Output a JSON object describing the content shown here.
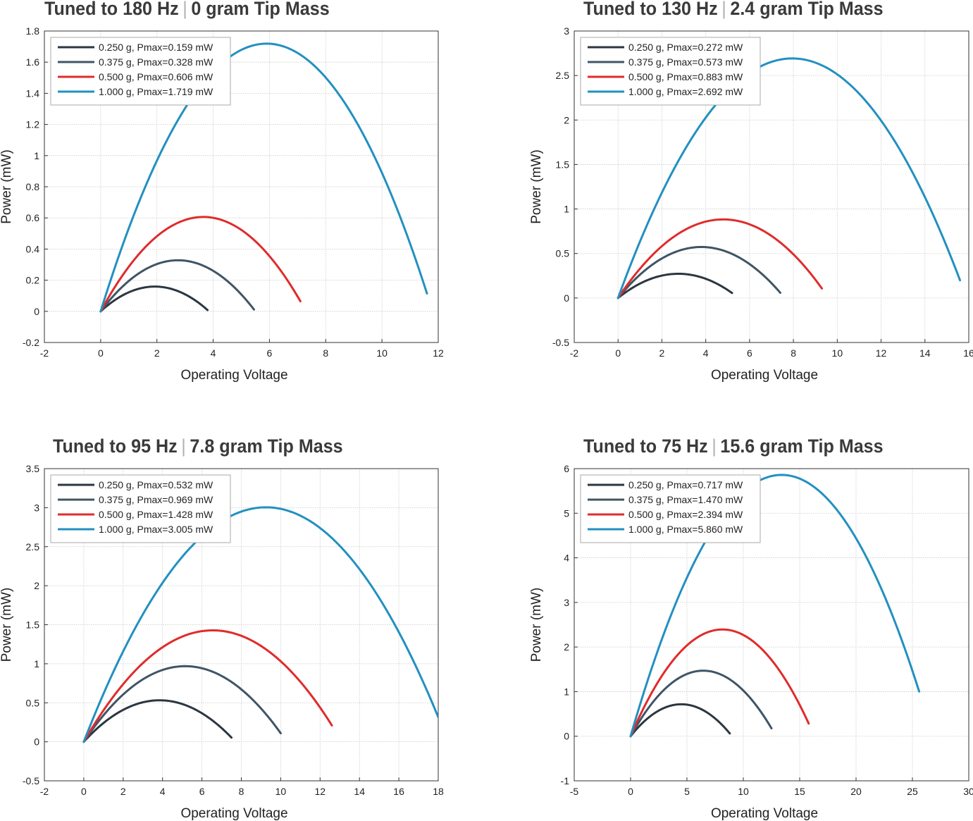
{
  "chart_data": [
    {
      "type": "line",
      "title_freq": "Tuned to 180 Hz",
      "title_mass": "0 gram Tip Mass",
      "xlabel": "Operating Voltage",
      "ylabel": "Power (mW)",
      "xlim": [
        -2,
        12
      ],
      "ylim": [
        -0.2,
        1.8
      ],
      "xticks": [
        -2,
        0,
        2,
        4,
        6,
        8,
        10,
        12
      ],
      "yticks": [
        -0.2,
        0,
        0.2,
        0.4,
        0.6,
        0.8,
        1,
        1.2,
        1.4,
        1.6,
        1.8
      ],
      "grid": true,
      "legend_position": "top-left",
      "series": [
        {
          "name": "0.250 g, Pmax=0.159 mW",
          "color": "#2b3640",
          "vmax": 3.85,
          "vend": 3.8,
          "pmax": 0.159
        },
        {
          "name": "0.375 g, Pmax=0.328 mW",
          "color": "#3f5566",
          "vmax": 5.5,
          "vend": 5.45,
          "pmax": 0.328
        },
        {
          "name": "0.500 g, Pmax=0.606 mW",
          "color": "#e02b2b",
          "vmax": 7.3,
          "vend": 7.1,
          "pmax": 0.606
        },
        {
          "name": "1.000 g, Pmax=1.719 mW",
          "color": "#2290c0",
          "vmax": 11.8,
          "vend": 11.6,
          "pmax": 1.719
        }
      ]
    },
    {
      "type": "line",
      "title_freq": "Tuned to 130 Hz",
      "title_mass": "2.4 gram Tip Mass",
      "xlabel": "Operating Voltage",
      "ylabel": "Power (mW)",
      "xlim": [
        -2,
        16
      ],
      "ylim": [
        -0.5,
        3
      ],
      "xticks": [
        -2,
        0,
        2,
        4,
        6,
        8,
        10,
        12,
        14,
        16
      ],
      "yticks": [
        -0.5,
        0,
        0.5,
        1,
        1.5,
        2,
        2.5,
        3
      ],
      "grid": true,
      "legend_position": "top-left",
      "series": [
        {
          "name": "0.250 g, Pmax=0.272 mW",
          "color": "#2b3640",
          "vmax": 5.5,
          "vend": 5.2,
          "pmax": 0.272
        },
        {
          "name": "0.375 g, Pmax=0.573 mW",
          "color": "#3f5566",
          "vmax": 7.6,
          "vend": 7.4,
          "pmax": 0.573
        },
        {
          "name": "0.500 g, Pmax=0.883 mW",
          "color": "#e02b2b",
          "vmax": 9.6,
          "vend": 9.3,
          "pmax": 0.883
        },
        {
          "name": "1.000 g, Pmax=2.692 mW",
          "color": "#2290c0",
          "vmax": 15.9,
          "vend": 15.6,
          "pmax": 2.692
        }
      ]
    },
    {
      "type": "line",
      "title_freq": "Tuned to 95 Hz",
      "title_mass": "7.8 gram Tip Mass",
      "xlabel": "Operating Voltage",
      "ylabel": "Power (mW)",
      "xlim": [
        -2,
        18
      ],
      "ylim": [
        -0.5,
        3.5
      ],
      "xticks": [
        -2,
        0,
        2,
        4,
        6,
        8,
        10,
        12,
        14,
        16,
        18
      ],
      "yticks": [
        -0.5,
        0,
        0.5,
        1,
        1.5,
        2,
        2.5,
        3,
        3.5
      ],
      "grid": true,
      "legend_position": "top-left",
      "series": [
        {
          "name": "0.250 g, Pmax=0.532 mW",
          "color": "#2b3640",
          "vmax": 7.7,
          "vend": 7.5,
          "pmax": 0.532
        },
        {
          "name": "0.375 g, Pmax=0.969 mW",
          "color": "#3f5566",
          "vmax": 10.3,
          "vend": 10.0,
          "pmax": 0.969
        },
        {
          "name": "0.500 g, Pmax=1.428 mW",
          "color": "#e02b2b",
          "vmax": 13.1,
          "vend": 12.6,
          "pmax": 1.428
        },
        {
          "name": "1.000 g, Pmax=3.005 mW",
          "color": "#2290c0",
          "vmax": 18.5,
          "vend": 18.0,
          "pmax": 3.005
        }
      ]
    },
    {
      "type": "line",
      "title_freq": "Tuned to 75 Hz",
      "title_mass": "15.6 gram Tip Mass",
      "xlabel": "Operating Voltage",
      "ylabel": "Power (mW)",
      "xlim": [
        -5,
        30
      ],
      "ylim": [
        -1,
        6
      ],
      "xticks": [
        -5,
        0,
        5,
        10,
        15,
        20,
        25,
        30
      ],
      "yticks": [
        -1,
        0,
        1,
        2,
        3,
        4,
        5,
        6
      ],
      "grid": true,
      "legend_position": "top-left",
      "series": [
        {
          "name": "0.250 g, Pmax=0.717 mW",
          "color": "#2b3640",
          "vmax": 9.0,
          "vend": 8.8,
          "pmax": 0.717
        },
        {
          "name": "0.375 g, Pmax=1.470 mW",
          "color": "#3f5566",
          "vmax": 12.9,
          "vend": 12.5,
          "pmax": 1.47
        },
        {
          "name": "0.500 g, Pmax=2.394 mW",
          "color": "#e02b2b",
          "vmax": 16.3,
          "vend": 15.8,
          "pmax": 2.394
        },
        {
          "name": "1.000 g, Pmax=5.860 mW",
          "color": "#2290c0",
          "vmax": 26.8,
          "vend": 25.6,
          "pmax": 5.86
        }
      ]
    }
  ]
}
